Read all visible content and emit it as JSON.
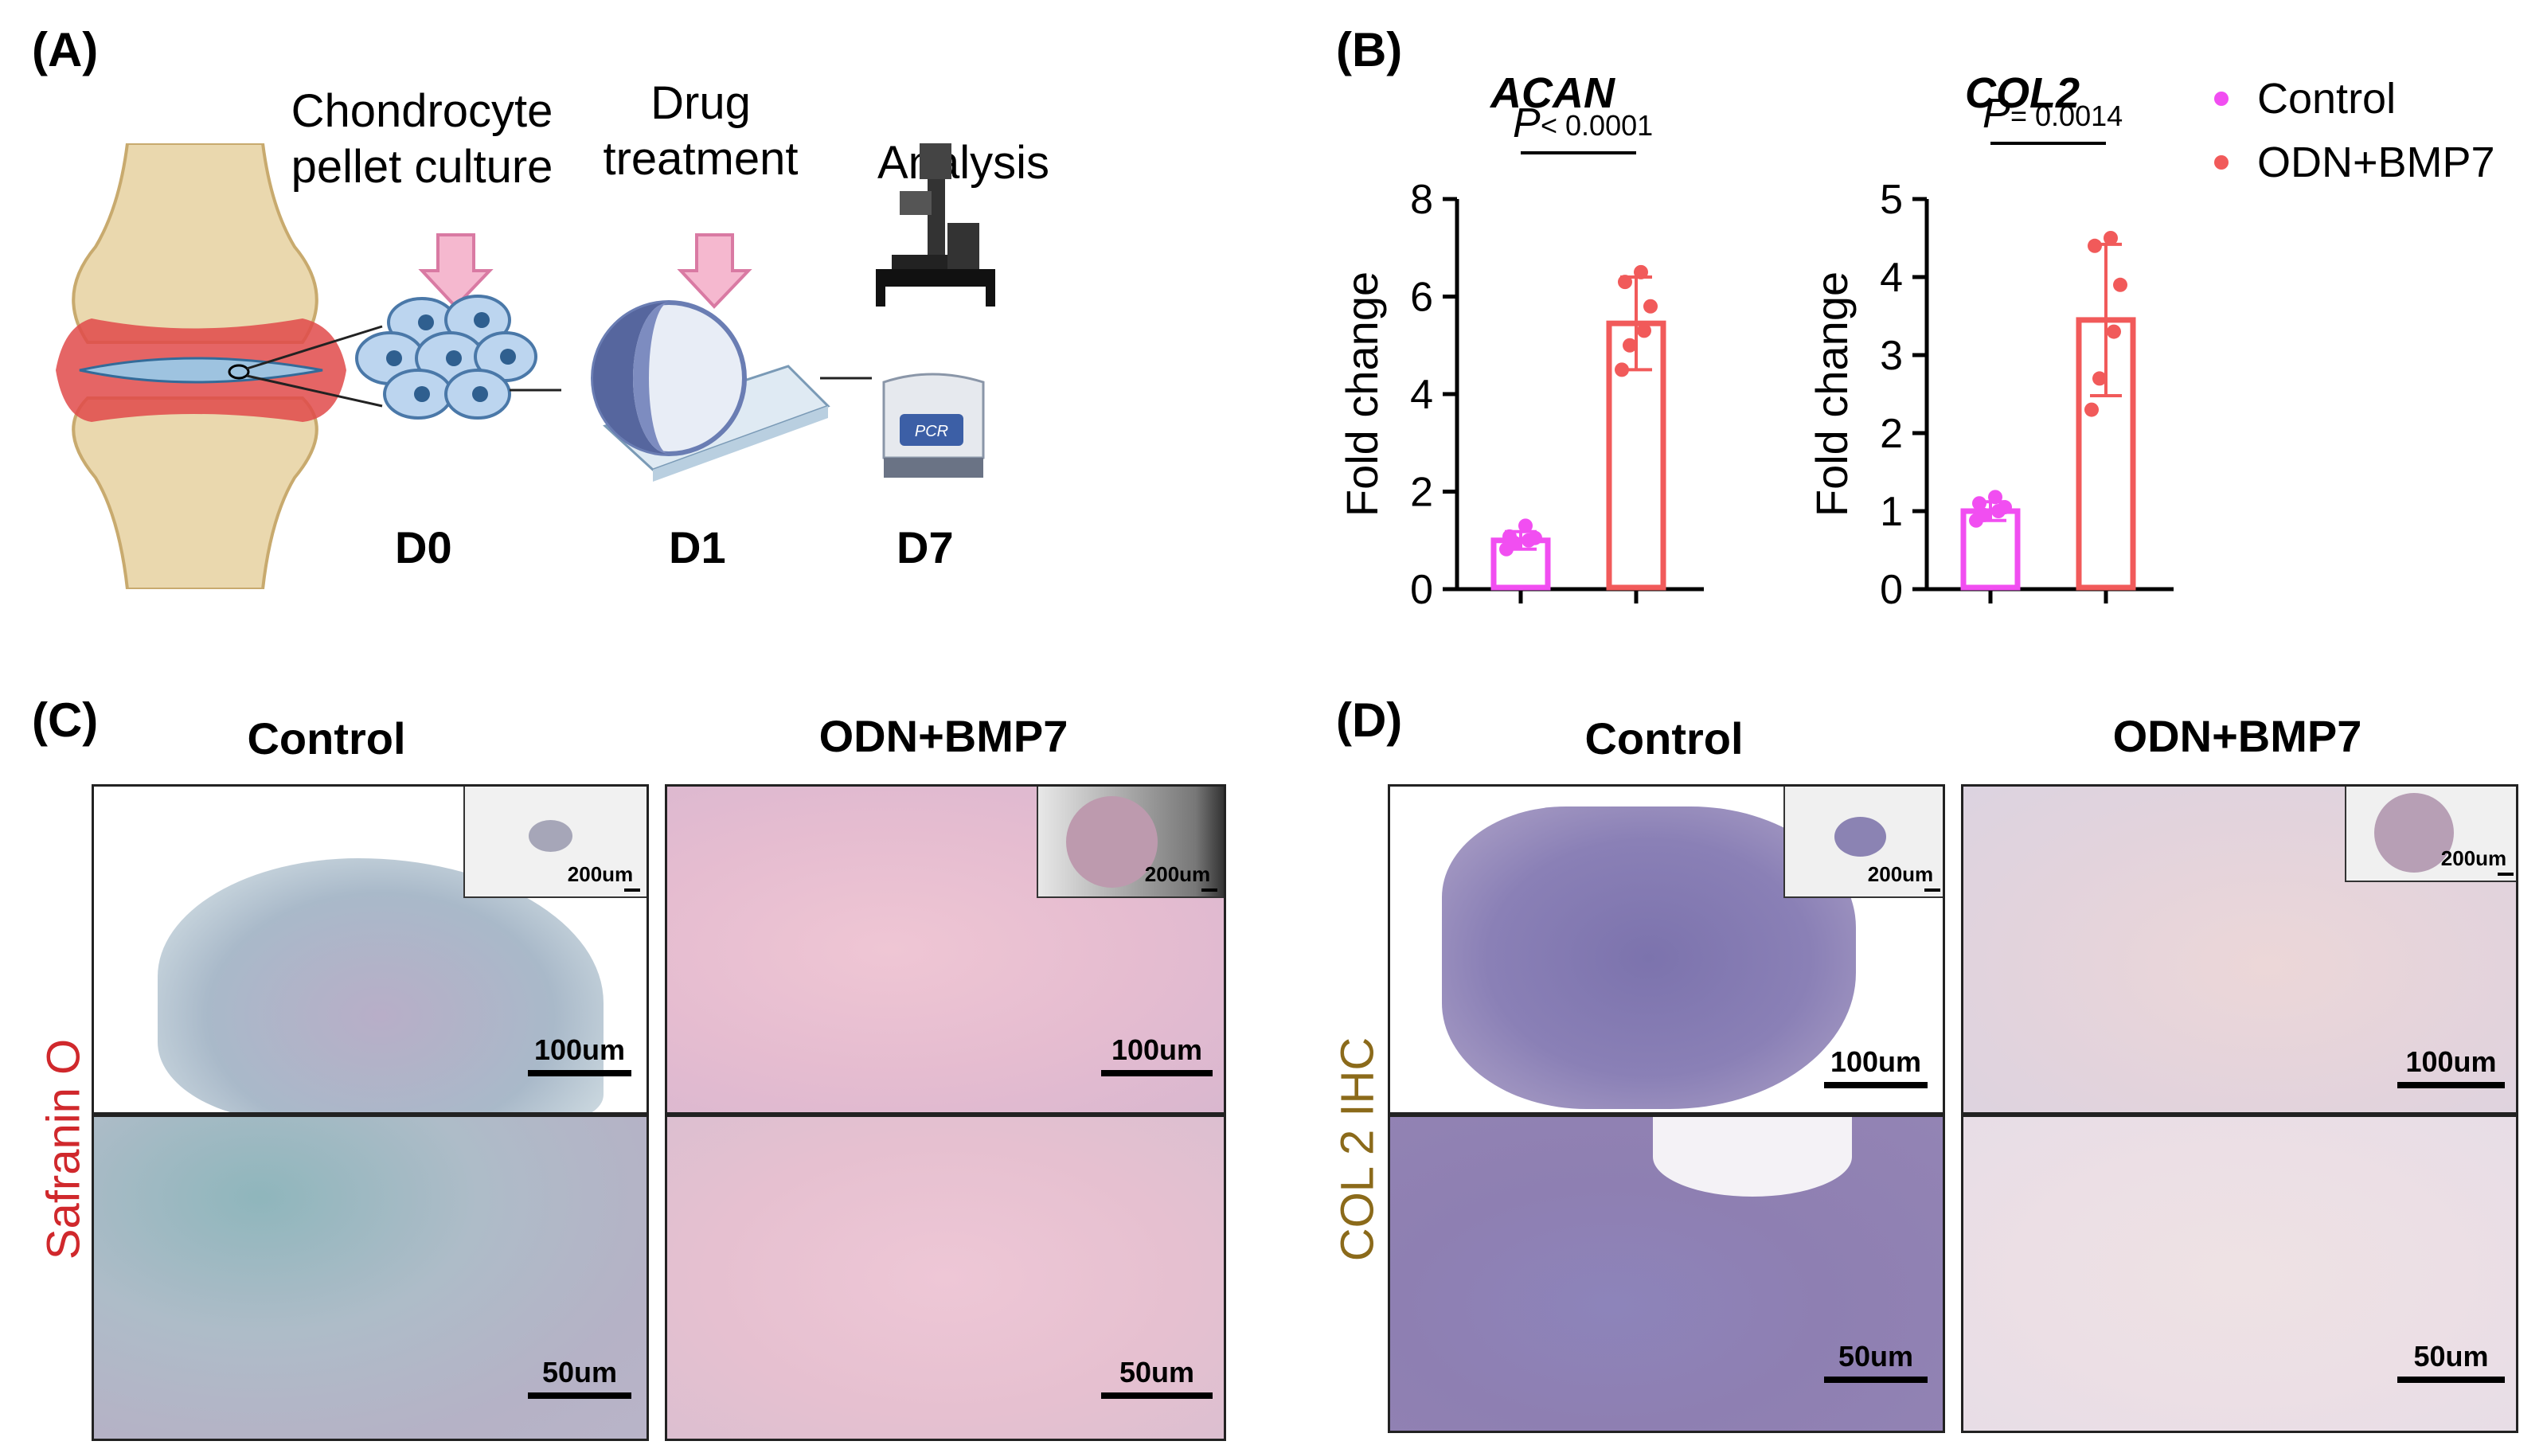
{
  "panel_labels": {
    "a": "(A)",
    "b": "(B)",
    "c": "(C)",
    "d": "(D)"
  },
  "panelA": {
    "steps": [
      {
        "line1": "Chondrocyte",
        "line2": "pellet culture"
      },
      {
        "line1": "Drug",
        "line2": "treatment"
      },
      {
        "line1": "Analysis"
      }
    ],
    "days": [
      "D0",
      "D1",
      "D7"
    ],
    "pcr_label": "PCR"
  },
  "colors": {
    "control": "#f14ef1",
    "treatment": "#f15a5a",
    "safranin_label": "#d0282c",
    "col2_label": "#8b6a1a"
  },
  "chart_data": [
    {
      "type": "bar",
      "title": "ACAN",
      "ylabel": "Fold change",
      "ylim": [
        0,
        8
      ],
      "yticks": [
        "0",
        "2",
        "4",
        "6",
        "8"
      ],
      "pvalue_p": "P",
      "pvalue_text": " < 0.0001",
      "series": [
        {
          "name": "Control",
          "mean": 1.0,
          "sd": 0.18,
          "points": [
            0.82,
            0.95,
            1.0,
            1.05,
            1.08,
            1.3
          ]
        },
        {
          "name": "ODN+BMP7",
          "mean": 5.45,
          "sd": 0.95,
          "points": [
            4.5,
            5.0,
            5.3,
            5.8,
            6.3,
            6.5
          ]
        }
      ]
    },
    {
      "type": "bar",
      "title": "COL2",
      "ylabel": "Fold change",
      "ylim": [
        0,
        5
      ],
      "yticks": [
        "0",
        "1",
        "2",
        "3",
        "4",
        "5"
      ],
      "pvalue_p": "P",
      "pvalue_text": " = 0.0014",
      "series": [
        {
          "name": "Control",
          "mean": 1.0,
          "sd": 0.12,
          "points": [
            0.88,
            0.95,
            1.0,
            1.05,
            1.1,
            1.18
          ]
        },
        {
          "name": "ODN+BMP7",
          "mean": 3.45,
          "sd": 0.97,
          "points": [
            2.3,
            2.7,
            3.3,
            3.9,
            4.4,
            4.5
          ]
        }
      ]
    }
  ],
  "legend": [
    {
      "label": "Control"
    },
    {
      "label": "ODN+BMP7"
    }
  ],
  "panelC": {
    "stain_label": "Safranin O",
    "col_heads": [
      "Control",
      "ODN+BMP7"
    ],
    "inset_scale": "200um",
    "scale_top": "100um",
    "scale_bottom": "50um"
  },
  "panelD": {
    "stain_label": "COL 2 IHC",
    "col_heads": [
      "Control",
      "ODN+BMP7"
    ],
    "inset_scale": "200um",
    "scale_top": "100um",
    "scale_bottom": "50um"
  }
}
